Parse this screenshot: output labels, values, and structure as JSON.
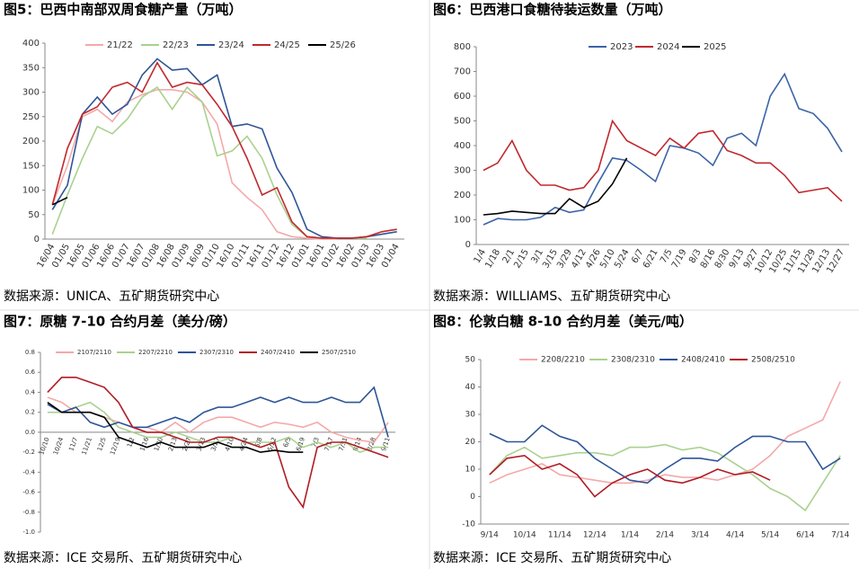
{
  "chart_data": [
    {
      "type": "line",
      "title": "图5：巴西中南部双周食糖产量（万吨）",
      "source": "数据来源：UNICA、五矿期货研究中心",
      "categories": [
        "16/04",
        "01/05",
        "16/05",
        "01/06",
        "16/06",
        "01/07",
        "16/07",
        "01/08",
        "16/08",
        "01/09",
        "16/09",
        "01/10",
        "16/10",
        "01/11",
        "16/11",
        "01/12",
        "16/12",
        "01/01",
        "16/01",
        "01/02",
        "16/02",
        "01/03",
        "16/03",
        "01/04"
      ],
      "ylim": [
        0,
        400
      ],
      "yticks": [
        0,
        50,
        100,
        150,
        200,
        250,
        300,
        350,
        400
      ],
      "series": [
        {
          "name": "21/22",
          "color": "#f4a9a8",
          "values": [
            70,
            150,
            250,
            265,
            240,
            280,
            295,
            305,
            305,
            300,
            280,
            235,
            115,
            85,
            60,
            15,
            5,
            2,
            0,
            0,
            null,
            null,
            null,
            null
          ]
        },
        {
          "name": "22/23",
          "color": "#a9d18e",
          "values": [
            10,
            90,
            165,
            230,
            215,
            245,
            290,
            310,
            265,
            310,
            280,
            170,
            180,
            210,
            165,
            90,
            30,
            5,
            2,
            2,
            2,
            2,
            null,
            null
          ]
        },
        {
          "name": "23/24",
          "color": "#2e5597",
          "values": [
            60,
            110,
            255,
            290,
            255,
            275,
            335,
            368,
            345,
            348,
            315,
            335,
            230,
            235,
            225,
            145,
            95,
            20,
            5,
            2,
            2,
            5,
            10,
            15
          ]
        },
        {
          "name": "24/25",
          "color": "#c0282d",
          "values": [
            70,
            185,
            255,
            270,
            310,
            320,
            300,
            360,
            310,
            320,
            315,
            275,
            230,
            165,
            90,
            105,
            35,
            5,
            2,
            2,
            2,
            5,
            15,
            20
          ]
        },
        {
          "name": "25/26",
          "color": "#000000",
          "values": [
            70,
            85,
            null,
            null,
            null,
            null,
            null,
            null,
            null,
            null,
            null,
            null,
            null,
            null,
            null,
            null,
            null,
            null,
            null,
            null,
            null,
            null,
            null,
            null
          ]
        }
      ]
    },
    {
      "type": "line",
      "title": "图6：巴西港口食糖待装运数量（万吨）",
      "source": "数据来源：WILLIAMS、五矿期货研究中心",
      "categories": [
        "1/4",
        "1/18",
        "2/1",
        "2/15",
        "3/1",
        "3/15",
        "3/29",
        "4/12",
        "4/26",
        "5/10",
        "5/24",
        "6/7",
        "6/21",
        "7/5",
        "7/19",
        "8/3",
        "8/16",
        "8/30",
        "9/13",
        "9/27",
        "10/12",
        "10/25",
        "11/15",
        "11/29",
        "12/13",
        "12/27"
      ],
      "ylim": [
        0,
        800
      ],
      "yticks": [
        0,
        100,
        200,
        300,
        400,
        500,
        600,
        700,
        800
      ],
      "series": [
        {
          "name": "2023",
          "color": "#3c64a8",
          "values": [
            80,
            105,
            100,
            100,
            110,
            150,
            130,
            140,
            250,
            350,
            340,
            300,
            255,
            400,
            390,
            370,
            320,
            430,
            450,
            400,
            600,
            690,
            550,
            530,
            470,
            375
          ]
        },
        {
          "name": "2024",
          "color": "#c0282d",
          "values": [
            300,
            330,
            420,
            300,
            240,
            240,
            220,
            230,
            300,
            500,
            420,
            390,
            360,
            430,
            390,
            450,
            460,
            380,
            360,
            330,
            330,
            280,
            210,
            220,
            230,
            175
          ]
        },
        {
          "name": "2025",
          "color": "#000000",
          "values": [
            120,
            125,
            135,
            130,
            125,
            125,
            185,
            150,
            175,
            245,
            350,
            null,
            null,
            null,
            null,
            null,
            null,
            null,
            null,
            null,
            null,
            null,
            null,
            null,
            null,
            null
          ]
        }
      ]
    },
    {
      "type": "line",
      "title": "图7：原糖 7-10 合约月差（美分/磅）",
      "source": "数据来源：ICE 交易所、五矿期货研究中心",
      "categories": [
        "10/10",
        "10/24",
        "11/7",
        "11/21",
        "12/5",
        "12/19",
        "1/2",
        "1/16",
        "1/30",
        "2/13",
        "2/27",
        "3/13",
        "3/27",
        "4/10",
        "4/24",
        "5/8",
        "5/22",
        "6/5",
        "6/19",
        "7/3",
        "7/17",
        "7/31",
        "8/14",
        "8/28",
        "9/11"
      ],
      "ylim": [
        -1.0,
        0.8
      ],
      "yticks": [
        {
          "value": -1.0,
          "label": "-1.0"
        },
        -0.8,
        -0.6,
        -0.4,
        -0.2,
        {
          "value": 0,
          "label": "0.0"
        },
        0.2,
        0.4,
        0.6,
        0.8
      ],
      "series": [
        {
          "name": "2107/2110",
          "color": "#f4a9a8",
          "values": [
            0.35,
            0.3,
            0.2,
            0.2,
            0.15,
            0.1,
            0.05,
            0.05,
            0.0,
            0.1,
            0.0,
            0.1,
            0.15,
            0.15,
            0.1,
            0.05,
            0.1,
            0.08,
            0.05,
            0.1,
            0.0,
            -0.05,
            -0.08,
            -0.1,
            0.1
          ]
        },
        {
          "name": "2207/2210",
          "color": "#a9d18e",
          "values": [
            0.2,
            0.2,
            0.25,
            0.3,
            0.2,
            0.05,
            0.0,
            -0.05,
            -0.05,
            0.0,
            -0.05,
            -0.1,
            -0.1,
            -0.05,
            -0.1,
            -0.1,
            -0.1,
            -0.05,
            -0.15,
            -0.1,
            -0.15,
            -0.1,
            -0.2,
            -0.15,
            -0.15
          ]
        },
        {
          "name": "2307/2310",
          "color": "#2e5597",
          "values": [
            0.28,
            0.2,
            0.25,
            0.1,
            0.05,
            0.1,
            0.05,
            0.05,
            0.1,
            0.15,
            0.1,
            0.2,
            0.25,
            0.25,
            0.3,
            0.35,
            0.3,
            0.35,
            0.3,
            0.3,
            0.35,
            0.3,
            0.3,
            0.45,
            -0.05
          ]
        },
        {
          "name": "2407/2410",
          "color": "#b01c24",
          "values": [
            0.4,
            0.55,
            0.55,
            0.5,
            0.45,
            0.3,
            0.05,
            0.0,
            0.0,
            -0.05,
            -0.1,
            -0.1,
            -0.05,
            -0.05,
            -0.1,
            -0.15,
            -0.1,
            -0.55,
            -0.75,
            -0.15,
            -0.1,
            -0.1,
            -0.15,
            -0.2,
            -0.25
          ]
        },
        {
          "name": "2507/2510",
          "color": "#000000",
          "values": [
            0.3,
            0.2,
            0.2,
            0.2,
            0.15,
            -0.05,
            -0.1,
            -0.15,
            -0.1,
            -0.15,
            -0.15,
            -0.15,
            -0.1,
            -0.15,
            -0.15,
            -0.2,
            -0.18,
            -0.2,
            -0.2,
            null,
            null,
            null,
            null,
            null,
            null
          ]
        }
      ]
    },
    {
      "type": "line",
      "title": "图8：伦敦白糖 8-10 合约月差（美元/吨）",
      "source": "数据来源：ICE 交易所、五矿期货研究中心",
      "categories": [
        "9/14",
        null,
        "10/14",
        null,
        "11/14",
        null,
        "12/14",
        null,
        "1/14",
        null,
        "2/14",
        null,
        "3/14",
        null,
        "4/14",
        null,
        "5/14",
        null,
        "6/14",
        null,
        "7/14"
      ],
      "ylim": [
        -10,
        50
      ],
      "yticks": [
        -10,
        0,
        10,
        20,
        30,
        40,
        50
      ],
      "series": [
        {
          "name": "2208/2210",
          "color": "#f4a9a8",
          "values": [
            5,
            8,
            10,
            12,
            8,
            7,
            6,
            5,
            5,
            6,
            8,
            7,
            7,
            6,
            8,
            10,
            15,
            22,
            25,
            28,
            42
          ]
        },
        {
          "name": "2308/2310",
          "color": "#a9d18e",
          "values": [
            8,
            15,
            18,
            14,
            15,
            16,
            16,
            15,
            18,
            18,
            19,
            17,
            18,
            16,
            12,
            8,
            3,
            0,
            -5,
            5,
            15
          ]
        },
        {
          "name": "2408/2410",
          "color": "#2e5597",
          "values": [
            23,
            20,
            20,
            26,
            22,
            20,
            14,
            10,
            6,
            5,
            10,
            14,
            14,
            13,
            18,
            22,
            22,
            20,
            20,
            10,
            14
          ]
        },
        {
          "name": "2508/2510",
          "color": "#b01c24",
          "values": [
            8,
            14,
            15,
            10,
            12,
            8,
            0,
            5,
            8,
            10,
            6,
            5,
            7,
            10,
            8,
            9,
            6,
            null,
            null,
            null,
            null
          ]
        }
      ]
    }
  ]
}
